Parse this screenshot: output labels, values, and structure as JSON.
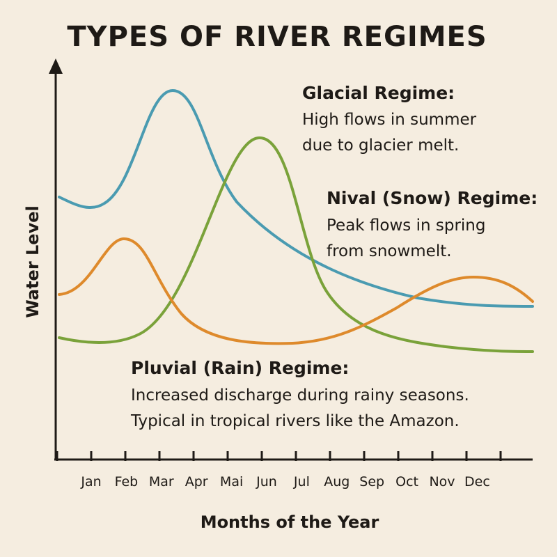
{
  "chart_data": {
    "type": "line",
    "title": "TYPES OF RIVER REGIMES",
    "xlabel": "Months of the Year",
    "ylabel": "Water Level",
    "categories": [
      "Jan",
      "Feb",
      "Mar",
      "Apr",
      "Mai",
      "Jun",
      "Jul",
      "Aug",
      "Sep",
      "Oct",
      "Nov",
      "Dec"
    ],
    "grid": false,
    "legend": "none",
    "series": [
      {
        "key": "glacial",
        "color": "#4a9bb1"
      },
      {
        "key": "nival",
        "color": "#7aa23a"
      },
      {
        "key": "pluvial",
        "color": "#de8a2c"
      }
    ],
    "annotations": [
      {
        "key": "glacial",
        "title": "Glacial Regime:",
        "lines": [
          "High flows in summer",
          "due to glacier melt."
        ]
      },
      {
        "key": "nival",
        "title": "Nival (Snow) Regime:",
        "lines": [
          "Peak flows in spring",
          "from snowmelt."
        ]
      },
      {
        "key": "pluvial",
        "title": "Pluvial (Rain) Regime:",
        "lines": [
          "Increased discharge during rainy seasons.",
          "Typical in tropical rivers like the Amazon."
        ]
      }
    ]
  }
}
